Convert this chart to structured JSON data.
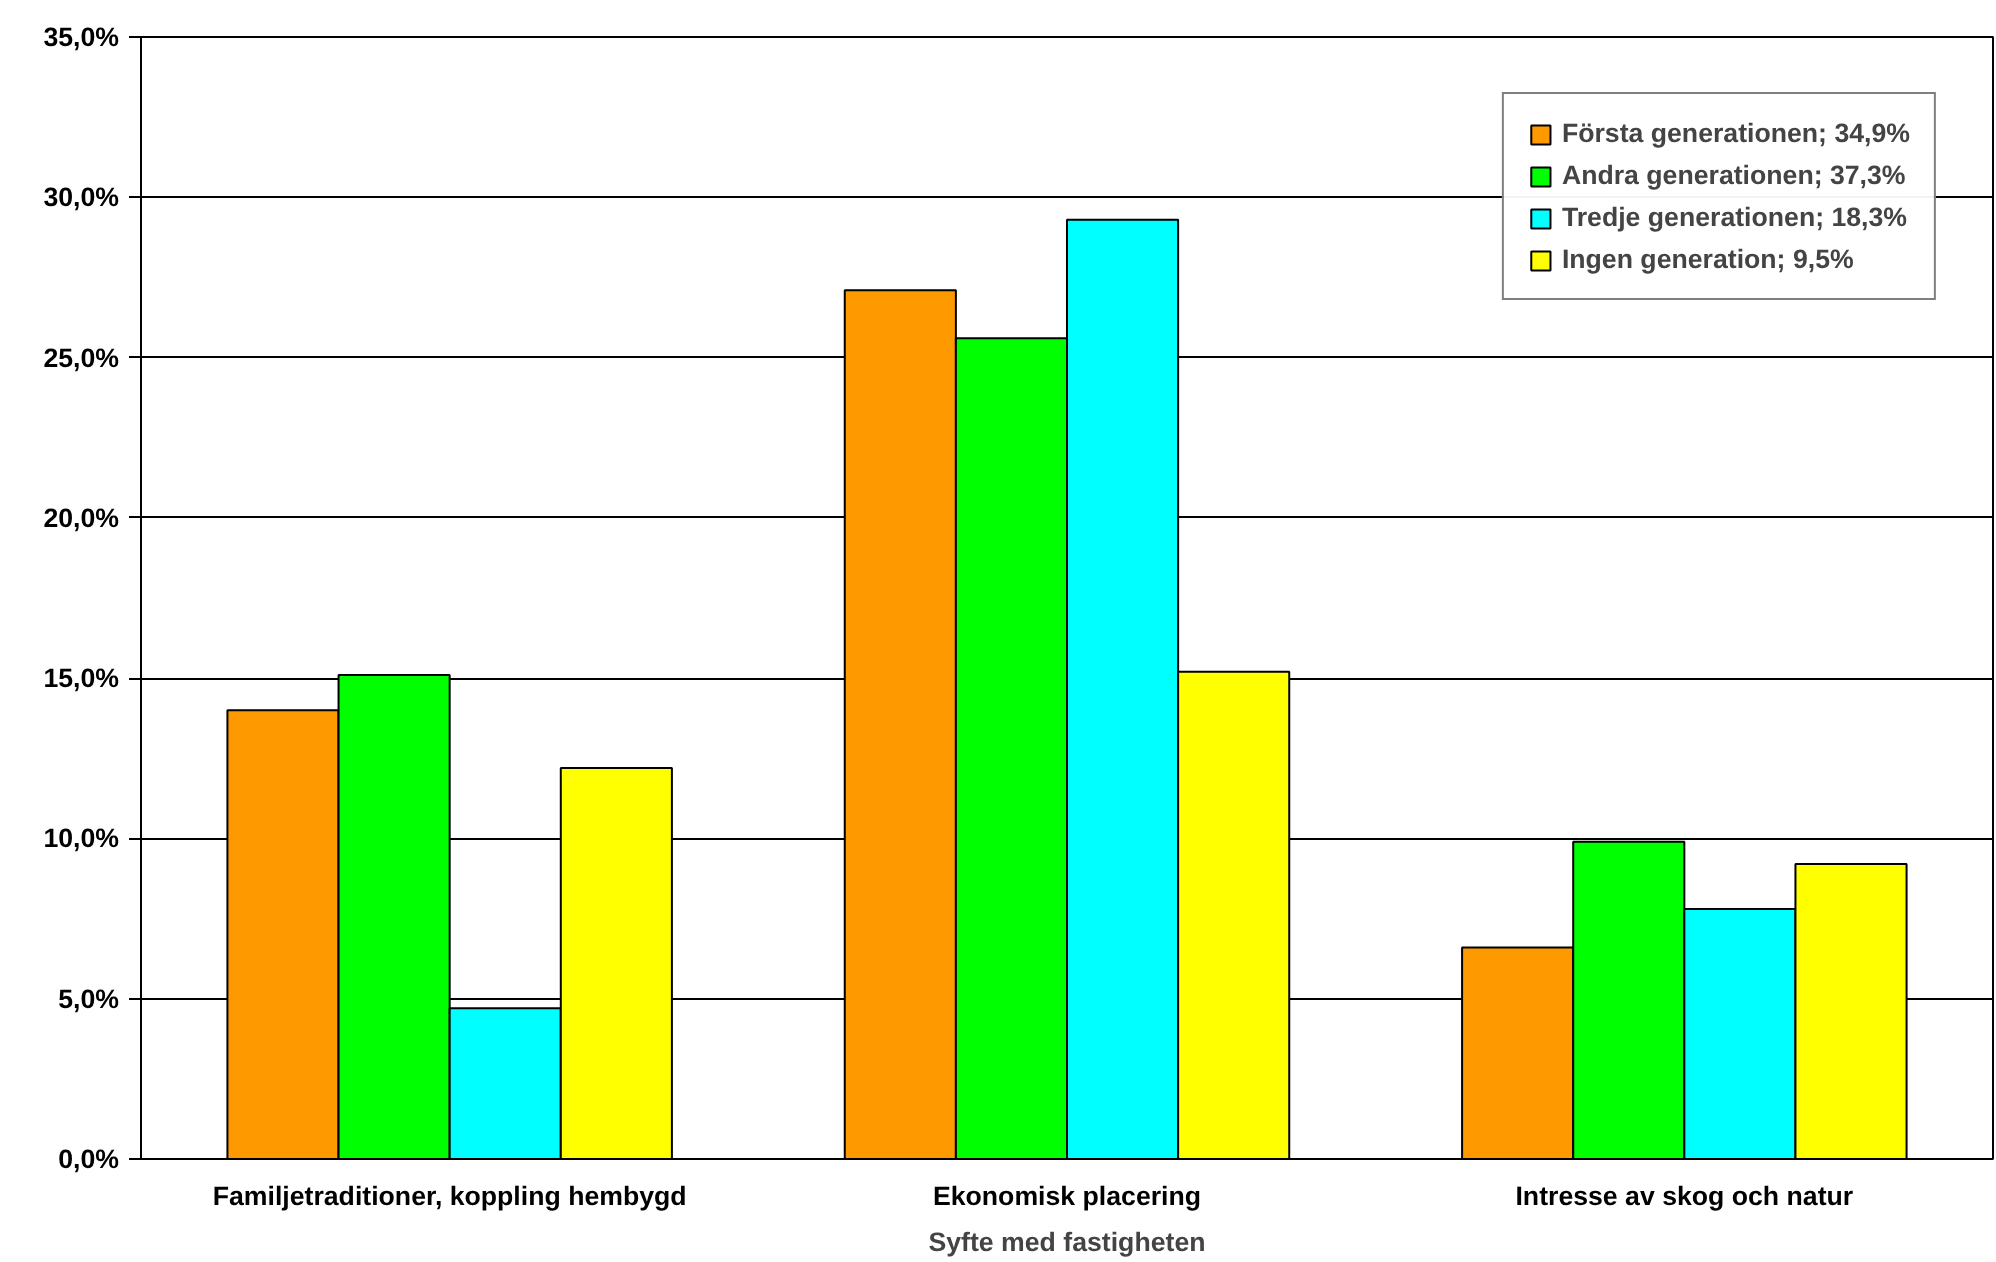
{
  "chart_data": {
    "type": "bar",
    "xlabel": "Syfte med fastigheten",
    "categories": [
      "Familjetraditioner, koppling hembygd",
      "Ekonomisk placering",
      "Intresse av skog och natur"
    ],
    "series": [
      {
        "name": "Första generationen; 34,9%",
        "color": "#ff9900",
        "values": [
          14.0,
          27.1,
          6.6
        ]
      },
      {
        "name": "Andra generationen; 37,3%",
        "color": "#00ff00",
        "values": [
          15.1,
          25.6,
          9.9
        ]
      },
      {
        "name": "Tredje generationen; 18,3%",
        "color": "#00ffff",
        "values": [
          4.7,
          29.3,
          7.8
        ]
      },
      {
        "name": "Ingen generation; 9,5%",
        "color": "#ffff00",
        "values": [
          12.2,
          15.2,
          9.2
        ]
      }
    ],
    "ylim": [
      0,
      35
    ],
    "yticks": [
      {
        "value": 0,
        "label": "0,0%"
      },
      {
        "value": 5,
        "label": "5,0%"
      },
      {
        "value": 10,
        "label": "10,0%"
      },
      {
        "value": 15,
        "label": "15,0%"
      },
      {
        "value": 20,
        "label": "20,0%"
      },
      {
        "value": 25,
        "label": "25,0%"
      },
      {
        "value": 30,
        "label": "30,0%"
      },
      {
        "value": 35,
        "label": "35,0%"
      }
    ],
    "grid": "y",
    "legend": "top right"
  }
}
